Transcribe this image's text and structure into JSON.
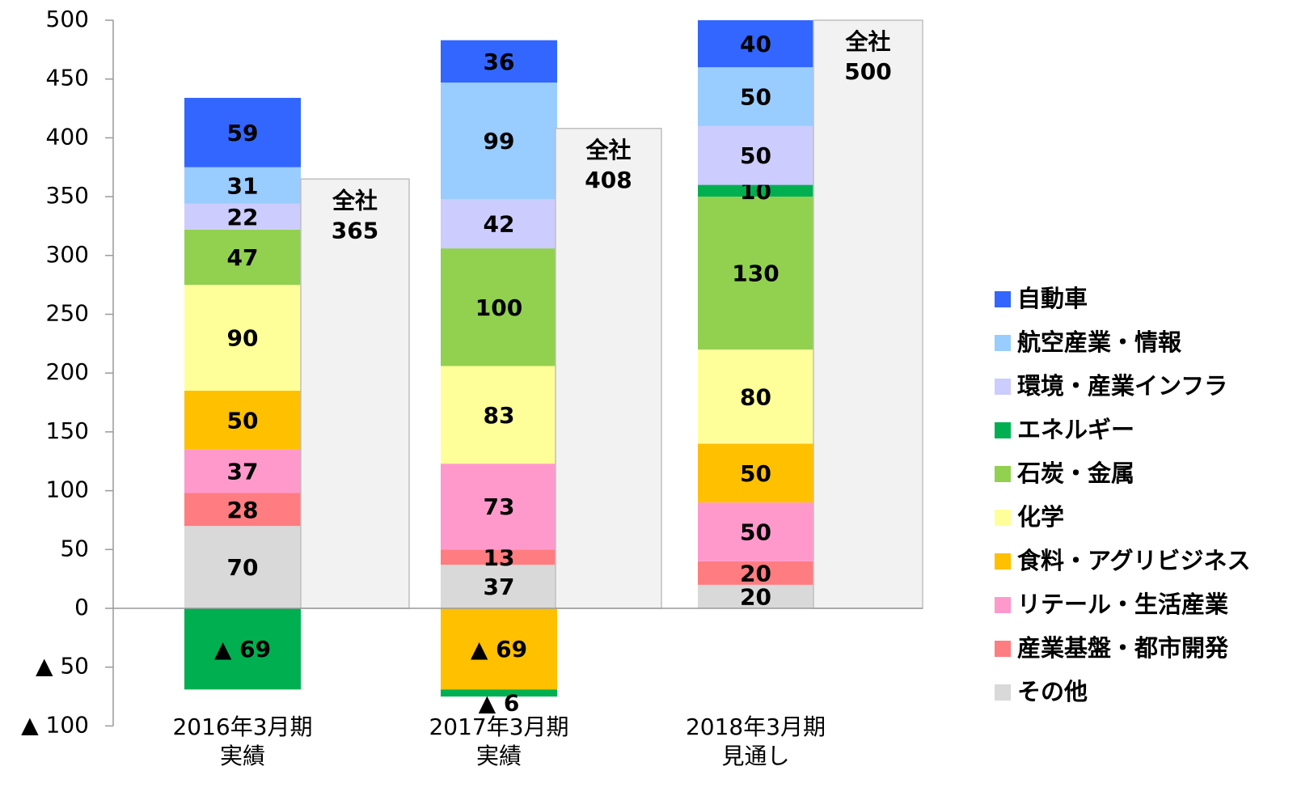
{
  "chart_data": {
    "type": "stacked_bar",
    "categories": [
      [
        "2016年3月期",
        "実績"
      ],
      [
        "2017年3月期",
        "実績"
      ],
      [
        "2018年3月期",
        "見通し"
      ]
    ],
    "series": [
      {
        "name": "自動車",
        "color": "#3366ff",
        "values": [
          59,
          36,
          40
        ]
      },
      {
        "name": "航空産業・情報",
        "color": "#99ccff",
        "values": [
          31,
          99,
          50
        ]
      },
      {
        "name": "環境・産業インフラ",
        "color": "#ccccff",
        "values": [
          22,
          42,
          50
        ]
      },
      {
        "name": "エネルギー",
        "color": "#00b050",
        "values": [
          -69,
          -6,
          10
        ],
        "value_labels": [
          "▲ 69",
          "▲ 6",
          "10"
        ]
      },
      {
        "name": "石炭・金属",
        "color": "#92d050",
        "values": [
          47,
          100,
          130
        ]
      },
      {
        "name": "化学",
        "color": "#ffff99",
        "values": [
          90,
          83,
          80
        ]
      },
      {
        "name": "食料・アグリビジネス",
        "color": "#ffc000",
        "values": [
          50,
          -69,
          50
        ],
        "value_labels": [
          "50",
          "▲ 69",
          "50"
        ]
      },
      {
        "name": "リテール・生活産業",
        "color": "#ff99cc",
        "values": [
          37,
          73,
          50
        ]
      },
      {
        "name": "産業基盤・都市開発",
        "color": "#ff7c80",
        "values": [
          28,
          13,
          20
        ]
      },
      {
        "name": "その他",
        "color": "#d9d9d9",
        "values": [
          70,
          37,
          20
        ]
      }
    ],
    "totals": {
      "name": "全社",
      "color": "#f2f2f2",
      "values": [
        365,
        408,
        500
      ]
    },
    "ylim": [
      -100,
      500
    ],
    "yticks": [
      {
        "value": -100,
        "label": "▲ 100"
      },
      {
        "value": -50,
        "label": "▲ 50"
      },
      0,
      50,
      100,
      150,
      200,
      250,
      300,
      350,
      400,
      450,
      500
    ],
    "legend": "right"
  }
}
